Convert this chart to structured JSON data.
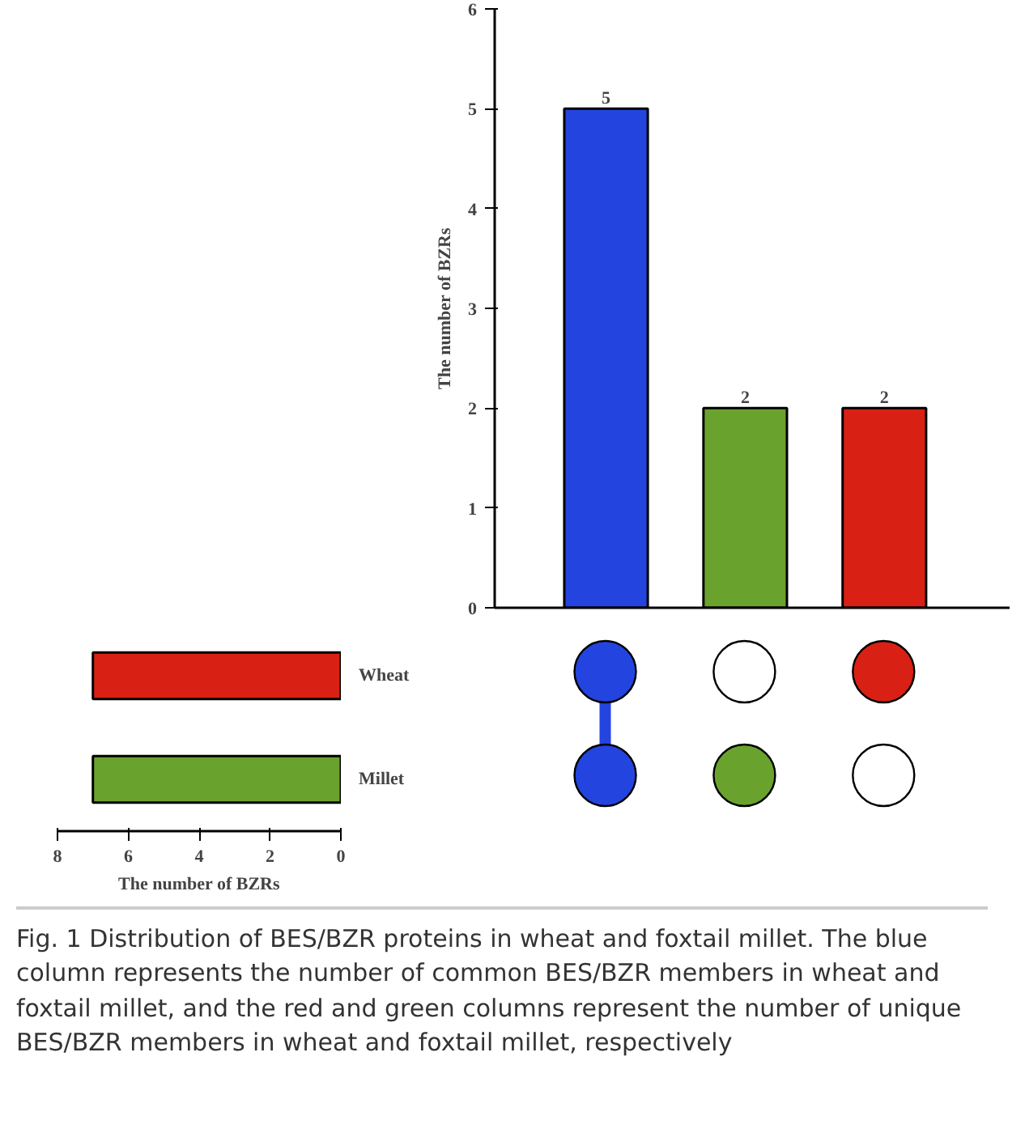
{
  "chart_data": [
    {
      "type": "bar",
      "ylabel": "The number of BZRs",
      "categories": [
        null,
        null,
        null
      ],
      "values": [
        5,
        2,
        2
      ],
      "colors": [
        "#2444e0",
        "#6aa22e",
        "#d92014"
      ],
      "ylim": [
        0,
        6
      ],
      "yticks": [
        0,
        1,
        2,
        3,
        4,
        5,
        6
      ],
      "data_labels": true,
      "annotations": [
        "Fig. 1 Distribution of BES/BZR proteins in wheat and foxtail millet. The blue column represents the number of common BES/BZR members in wheat and foxtail millet, and the red and green columns represent the number of unique BES/BZR members in wheat and foxtail millet, respectively"
      ]
    },
    {
      "type": "bar",
      "orientation": "horizontal",
      "xlabel": "The number of BZRs",
      "categories": [
        "Wheat",
        "Millet"
      ],
      "values": [
        7,
        7
      ],
      "colors": [
        "#d92014",
        "#6aa22e"
      ],
      "xlim": [
        8,
        0
      ],
      "xticks": [
        8,
        6,
        4,
        2,
        0
      ]
    }
  ]
}
